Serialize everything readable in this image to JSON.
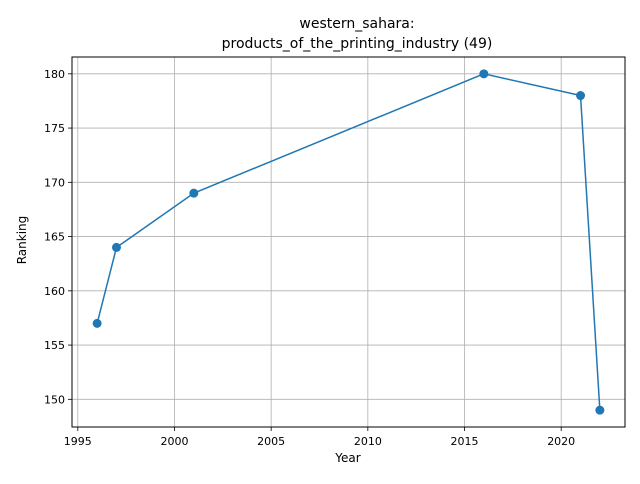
{
  "chart_data": {
    "type": "line",
    "title_line1": "western_sahara:",
    "title_line2": "products_of_the_printing_industry (49)",
    "xlabel": "Year",
    "ylabel": "Ranking",
    "xlim": [
      1994.7,
      2023.3
    ],
    "ylim": [
      147.45,
      181.55
    ],
    "xticks": [
      1995,
      2000,
      2005,
      2010,
      2015,
      2020
    ],
    "yticks": [
      150,
      155,
      160,
      165,
      170,
      175,
      180
    ],
    "grid": true,
    "color": "#1f77b4",
    "series": [
      {
        "x": [
          1996,
          1997,
          2001,
          2016,
          2021,
          2022
        ],
        "y": [
          157,
          164,
          169,
          180,
          178,
          149
        ]
      }
    ]
  }
}
